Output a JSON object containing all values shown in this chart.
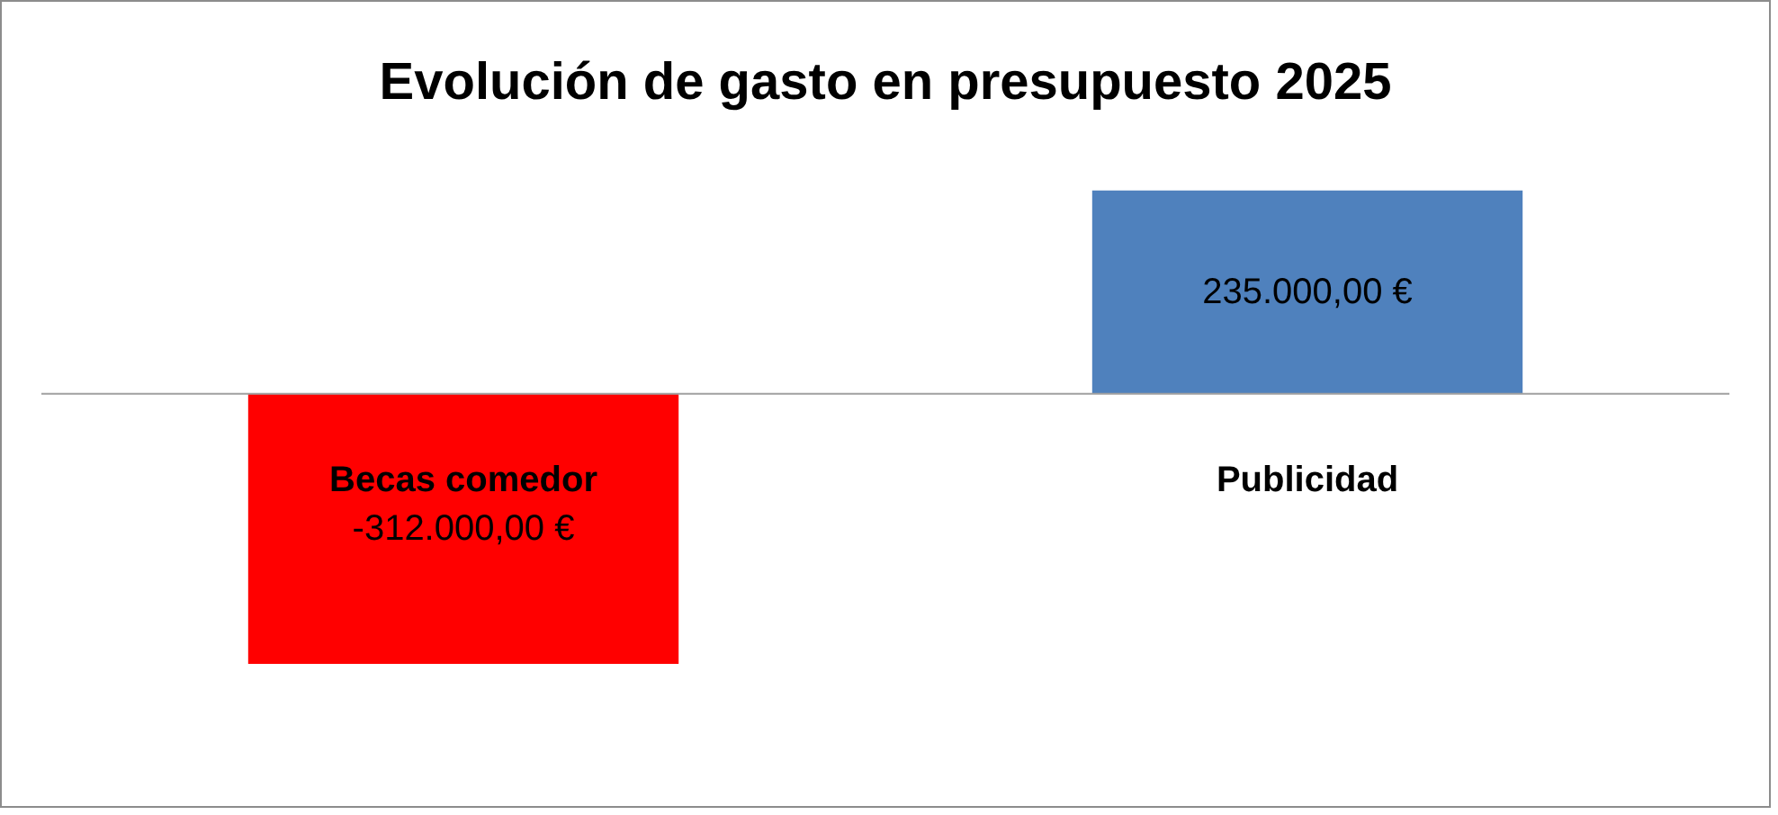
{
  "chart_data": {
    "type": "bar",
    "title": "Evolución de gasto en presupuesto 2025",
    "categories": [
      "Becas comedor",
      "Publicidad"
    ],
    "values": [
      -312000,
      235000
    ],
    "colors": [
      "#ff0000",
      "#4f81bd"
    ],
    "value_labels": [
      "-312.000,00 €",
      "235.000,00 €"
    ]
  }
}
